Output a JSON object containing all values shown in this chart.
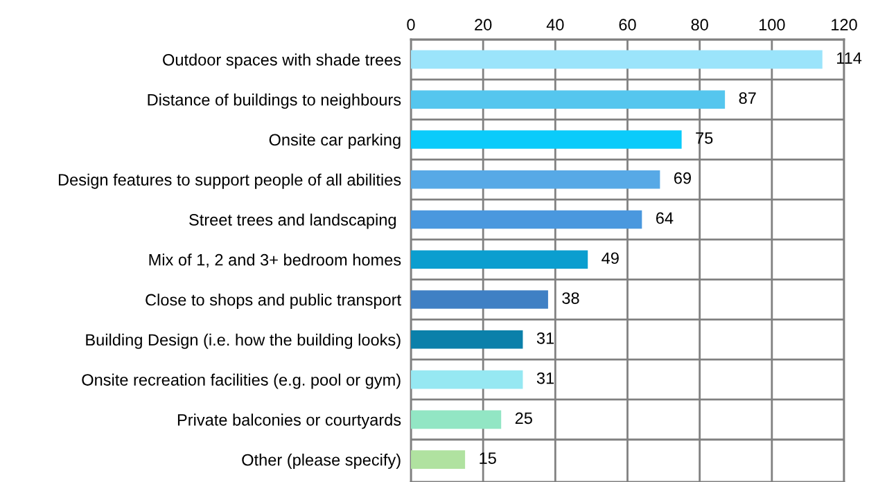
{
  "chart_data": {
    "type": "bar",
    "orientation": "horizontal",
    "categories": [
      "Outdoor spaces with shade trees",
      "Distance of buildings to neighbours",
      "Onsite car parking",
      "Design features to support people of all abilities",
      "Street trees and landscaping ",
      "Mix of 1, 2 and 3+ bedroom homes",
      "Close to shops and public transport",
      "Building Design (i.e. how the building looks)",
      "Onsite recreation facilities (e.g. pool or gym)",
      "Private balconies or courtyards",
      "Other (please specify)"
    ],
    "values": [
      114,
      87,
      75,
      69,
      64,
      49,
      38,
      31,
      31,
      25,
      15
    ],
    "colors": [
      "#9be4fb",
      "#55c6ee",
      "#0bcbfa",
      "#57a9e6",
      "#4a98de",
      "#0b9ecf",
      "#3f80c4",
      "#0b80aa",
      "#96e8f2",
      "#92e6c4",
      "#b0e2a0"
    ],
    "xlim": [
      0,
      120
    ],
    "xticks": [
      0,
      20,
      40,
      60,
      80,
      100,
      120
    ],
    "grid": true,
    "data_labels": true
  }
}
